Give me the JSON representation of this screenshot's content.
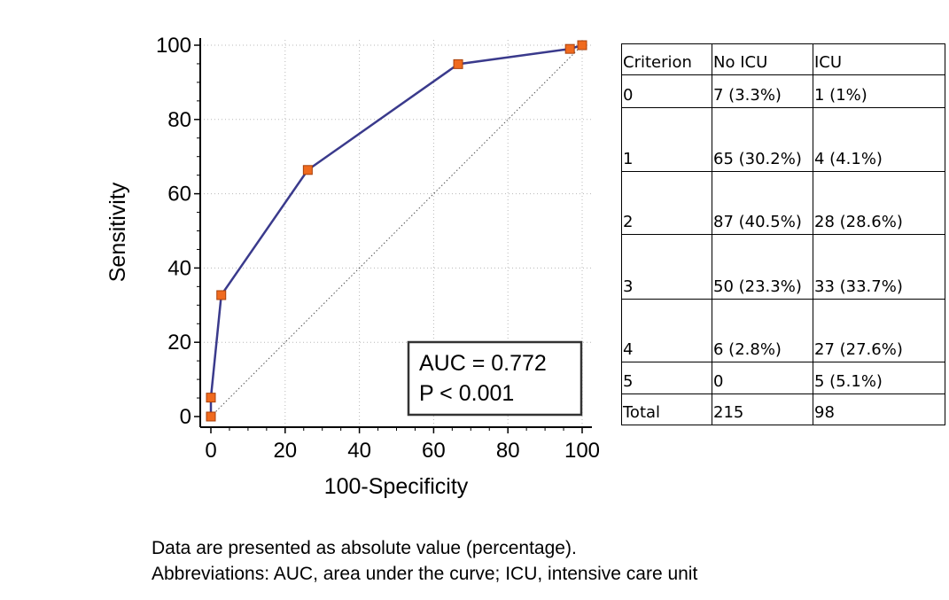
{
  "chart_data": {
    "type": "line",
    "xlabel": "100-Specificity",
    "ylabel": "Sensitivity",
    "xlim": [
      0,
      100
    ],
    "ylim": [
      0,
      100
    ],
    "x_ticks": [
      0,
      20,
      40,
      60,
      80,
      100
    ],
    "y_ticks": [
      0,
      20,
      40,
      60,
      80,
      100
    ],
    "grid": true,
    "series": [
      {
        "x": [
          0,
          0,
          2.8,
          26.1,
          66.6,
          96.7,
          100
        ],
        "y": [
          0,
          5.1,
          32.7,
          66.4,
          94.9,
          99.0,
          100
        ],
        "color": "#3a3a8c",
        "marker_color": "#f06a1e"
      }
    ],
    "reference_line": {
      "x": [
        0,
        100
      ],
      "y": [
        0,
        100
      ]
    },
    "annotations": [
      "AUC = 0.772",
      "P < 0.001"
    ]
  },
  "table": {
    "headers": [
      "Criterion",
      "No ICU",
      "ICU"
    ],
    "rows": [
      [
        "0",
        "7 (3.3%)",
        "1 (1%)"
      ],
      [
        "1",
        "65 (30.2%)",
        "4 (4.1%)"
      ],
      [
        "2",
        "87 (40.5%)",
        "28 (28.6%)"
      ],
      [
        "3",
        "50 (23.3%)",
        "33 (33.7%)"
      ],
      [
        "4",
        "6 (2.8%)",
        "27 (27.6%)"
      ],
      [
        "5",
        "0",
        "5 (5.1%)"
      ],
      [
        "Total",
        "215",
        "98"
      ]
    ]
  },
  "footnotes": [
    "Data are presented as absolute value (percentage).",
    "Abbreviations: AUC, area under the curve; ICU, intensive care unit"
  ]
}
